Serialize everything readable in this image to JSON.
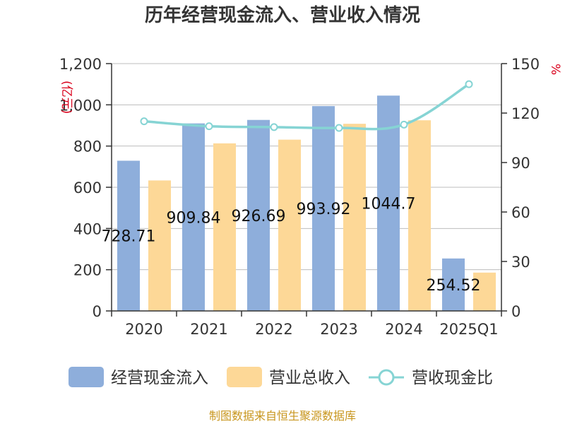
{
  "chart_data": {
    "type": "bar",
    "title": "历年经营现金流入、营业收入情况",
    "categories": [
      "2020",
      "2021",
      "2022",
      "2023",
      "2024",
      "2025Q1"
    ],
    "series": [
      {
        "name": "经营现金流入",
        "type": "bar",
        "axis": "left",
        "color": "#8eaedb",
        "values": [
          728.71,
          909.84,
          926.69,
          993.92,
          1044.7,
          254.52
        ],
        "data_labels": [
          "728.71",
          "909.84",
          "926.69",
          "993.92",
          "1044.7",
          "254.52"
        ]
      },
      {
        "name": "营业总收入",
        "type": "bar",
        "axis": "left",
        "color": "#fdd897",
        "values": [
          633,
          813,
          831,
          908,
          925,
          186
        ]
      },
      {
        "name": "营收现金比",
        "type": "line",
        "axis": "right",
        "color": "#86d4d4",
        "values": [
          115,
          112,
          111.5,
          111,
          113,
          137.5
        ]
      }
    ],
    "y_left": {
      "label": "(亿元)",
      "ylim": [
        0,
        1200
      ],
      "ticks": [
        0,
        200,
        400,
        600,
        800,
        1000,
        1200
      ],
      "tick_labels": [
        "0",
        "200",
        "400",
        "600",
        "800",
        "1,000",
        "1,200"
      ]
    },
    "y_right": {
      "label": "%",
      "ylim": [
        0,
        150
      ],
      "ticks": [
        0,
        30,
        60,
        90,
        120,
        150
      ],
      "tick_labels": [
        "0",
        "30",
        "60",
        "90",
        "120",
        "150"
      ]
    },
    "grid": true,
    "legend_position": "bottom"
  },
  "footer": {
    "source": "制图数据来自恒生聚源数据库"
  }
}
